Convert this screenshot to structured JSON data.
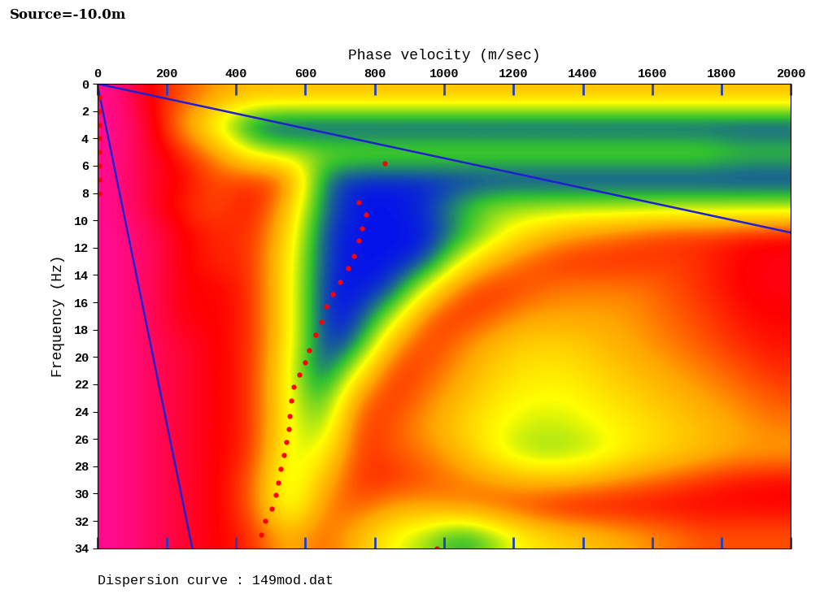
{
  "chart_data": {
    "type": "heatmap",
    "title": "Source=-10.0m",
    "x_label": "Phase velocity (m/sec)",
    "y_label": "Frequency (Hz)",
    "caption": "Dispersion curve : 149mod.dat",
    "xlim": [
      0,
      2000
    ],
    "xticks": [
      0,
      200,
      400,
      600,
      800,
      1000,
      1200,
      1400,
      1600,
      1800,
      2000
    ],
    "ylim": [
      34,
      0
    ],
    "yticks": [
      0,
      2,
      4,
      6,
      8,
      10,
      12,
      14,
      16,
      18,
      20,
      22,
      24,
      26,
      28,
      30,
      32,
      34
    ],
    "zlim": [
      0,
      1
    ],
    "cells": [
      [
        0.95,
        0.8,
        0.7,
        0.6,
        0.55,
        0.55,
        0.55,
        0.55,
        0.55,
        0.55,
        0.55,
        0.55,
        0.55,
        0.55,
        0.55,
        0.55,
        0.55,
        0.55,
        0.55,
        0.55
      ],
      [
        0.95,
        0.85,
        0.6,
        0.35,
        0.05,
        0.02,
        0.02,
        0.02,
        0.02,
        0.02,
        0.02,
        0.02,
        0.02,
        0.02,
        0.02,
        0.02,
        0.02,
        0.02,
        0.02,
        0.02
      ],
      [
        0.95,
        0.85,
        0.75,
        0.6,
        0.35,
        0.3,
        0.3,
        0.3,
        0.3,
        0.3,
        0.3,
        0.3,
        0.3,
        0.3,
        0.3,
        0.3,
        0.3,
        0.3,
        0.25,
        0.25
      ],
      [
        0.95,
        0.85,
        0.8,
        0.7,
        0.75,
        0.7,
        0.1,
        0.03,
        0.03,
        0.03,
        0.03,
        0.03,
        0.03,
        0.03,
        0.03,
        0.03,
        0.03,
        0.03,
        0.03,
        0.03
      ],
      [
        0.95,
        0.85,
        0.75,
        0.7,
        0.8,
        0.55,
        0.1,
        0.02,
        0.02,
        0.05,
        0.2,
        0.3,
        0.3,
        0.3,
        0.3,
        0.3,
        0.3,
        0.3,
        0.3,
        0.3
      ],
      [
        0.95,
        0.9,
        0.8,
        0.75,
        0.75,
        0.5,
        0.05,
        0.02,
        0.02,
        0.02,
        0.15,
        0.35,
        0.5,
        0.6,
        0.65,
        0.7,
        0.75,
        0.75,
        0.78,
        0.8
      ],
      [
        0.95,
        0.9,
        0.8,
        0.75,
        0.75,
        0.45,
        0.05,
        0.02,
        0.02,
        0.05,
        0.4,
        0.6,
        0.7,
        0.75,
        0.75,
        0.75,
        0.72,
        0.75,
        0.8,
        0.82
      ],
      [
        0.95,
        0.9,
        0.8,
        0.8,
        0.75,
        0.45,
        0.03,
        0.02,
        0.05,
        0.4,
        0.7,
        0.75,
        0.7,
        0.65,
        0.65,
        0.65,
        0.7,
        0.75,
        0.8,
        0.82
      ],
      [
        0.95,
        0.9,
        0.8,
        0.8,
        0.75,
        0.45,
        0.03,
        0.03,
        0.3,
        0.7,
        0.75,
        0.68,
        0.6,
        0.6,
        0.6,
        0.62,
        0.68,
        0.72,
        0.78,
        0.8
      ],
      [
        0.95,
        0.9,
        0.85,
        0.8,
        0.75,
        0.45,
        0.03,
        0.1,
        0.6,
        0.75,
        0.65,
        0.55,
        0.5,
        0.5,
        0.55,
        0.6,
        0.65,
        0.7,
        0.75,
        0.78
      ],
      [
        0.95,
        0.9,
        0.85,
        0.8,
        0.75,
        0.4,
        0.03,
        0.4,
        0.75,
        0.7,
        0.6,
        0.5,
        0.45,
        0.45,
        0.5,
        0.55,
        0.6,
        0.65,
        0.7,
        0.75
      ],
      [
        0.95,
        0.9,
        0.85,
        0.8,
        0.75,
        0.4,
        0.15,
        0.65,
        0.75,
        0.65,
        0.55,
        0.45,
        0.4,
        0.4,
        0.45,
        0.5,
        0.55,
        0.6,
        0.65,
        0.7
      ],
      [
        0.95,
        0.9,
        0.85,
        0.8,
        0.75,
        0.4,
        0.25,
        0.75,
        0.7,
        0.6,
        0.5,
        0.4,
        0.35,
        0.35,
        0.4,
        0.45,
        0.5,
        0.55,
        0.6,
        0.65
      ],
      [
        0.95,
        0.9,
        0.85,
        0.8,
        0.75,
        0.35,
        0.4,
        0.75,
        0.7,
        0.65,
        0.55,
        0.4,
        0.3,
        0.3,
        0.35,
        0.45,
        0.5,
        0.55,
        0.6,
        0.6
      ],
      [
        0.95,
        0.9,
        0.85,
        0.8,
        0.7,
        0.3,
        0.55,
        0.75,
        0.75,
        0.7,
        0.65,
        0.6,
        0.55,
        0.55,
        0.6,
        0.65,
        0.7,
        0.75,
        0.78,
        0.8
      ],
      [
        0.95,
        0.9,
        0.85,
        0.8,
        0.7,
        0.3,
        0.65,
        0.7,
        0.6,
        0.6,
        0.65,
        0.7,
        0.75,
        0.8,
        0.8,
        0.8,
        0.8,
        0.8,
        0.8,
        0.8
      ],
      [
        0.95,
        0.9,
        0.85,
        0.8,
        0.75,
        0.55,
        0.7,
        0.55,
        0.4,
        0.3,
        0.15,
        0.3,
        0.45,
        0.5,
        0.55,
        0.6,
        0.65,
        0.7,
        0.7,
        0.7
      ]
    ],
    "series": [
      {
        "type": "line",
        "color": "#2020d0",
        "line_style": "solid",
        "x": [
          0,
          2000
        ],
        "values": [
          0,
          10.9
        ]
      },
      {
        "type": "line",
        "color": "#2020d0",
        "line_style": "solid",
        "x": [
          0,
          274
        ],
        "values": [
          0,
          34
        ]
      },
      {
        "type": "scatter",
        "color": "#ff0000",
        "marker": "o",
        "x": [
          829,
          753,
          775,
          764,
          753,
          739,
          724,
          701,
          679,
          661,
          645,
          629,
          611,
          598,
          582,
          566,
          560,
          555,
          551,
          544,
          539,
          528,
          521,
          515,
          503,
          485,
          472,
          980,
          5,
          5,
          5,
          5,
          5,
          5,
          5,
          5
        ],
        "values": [
          5.8,
          8.7,
          9.6,
          10.6,
          11.5,
          12.6,
          13.5,
          14.5,
          15.4,
          16.3,
          17.4,
          18.4,
          19.5,
          20.4,
          21.3,
          22.2,
          23.2,
          24.3,
          25.3,
          26.2,
          27.2,
          28.2,
          29.2,
          30.1,
          31.1,
          32.0,
          33.0,
          34.0,
          1,
          2,
          3,
          4,
          5,
          6,
          7,
          8
        ]
      }
    ]
  }
}
